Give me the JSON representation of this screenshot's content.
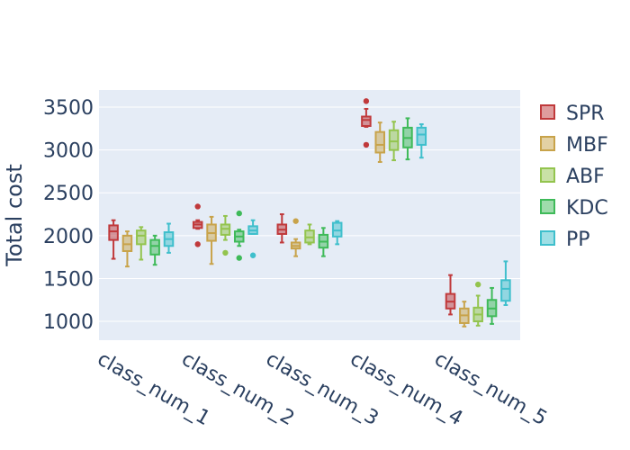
{
  "chart_data": {
    "type": "box",
    "title": "",
    "xlabel": "",
    "ylabel": "Total cost",
    "ylim": [
      780,
      3700
    ],
    "yticks": [
      1000,
      1500,
      2000,
      2500,
      3000,
      3500
    ],
    "ytick_labels": [
      "1000",
      "1500",
      "2000",
      "2500",
      "3000",
      "3500"
    ],
    "categories": [
      "class_num_1",
      "class_num_2",
      "class_num_3",
      "class_num_4",
      "class_num_5"
    ],
    "grid": true,
    "legend_position": "right",
    "series": [
      {
        "name": "SPR",
        "color": "#c0393b",
        "boxes": [
          {
            "min": 1730,
            "q1": 1950,
            "median": 2050,
            "q3": 2120,
            "max": 2180,
            "outliers": []
          },
          {
            "min": 2080,
            "q1": 2090,
            "median": 2130,
            "q3": 2160,
            "max": 2180,
            "outliers": [
              2340,
              1900
            ]
          },
          {
            "min": 1920,
            "q1": 2020,
            "median": 2070,
            "q3": 2130,
            "max": 2250,
            "outliers": []
          },
          {
            "min": 3270,
            "q1": 3280,
            "median": 3350,
            "q3": 3390,
            "max": 3480,
            "outliers": [
              3570,
              3060
            ]
          },
          {
            "min": 1080,
            "q1": 1150,
            "median": 1230,
            "q3": 1320,
            "max": 1540,
            "outliers": []
          }
        ]
      },
      {
        "name": "MBF",
        "color": "#c8a34a",
        "boxes": [
          {
            "min": 1640,
            "q1": 1820,
            "median": 1900,
            "q3": 2000,
            "max": 2050,
            "outliers": []
          },
          {
            "min": 1670,
            "q1": 1940,
            "median": 2030,
            "q3": 2130,
            "max": 2220,
            "outliers": []
          },
          {
            "min": 1760,
            "q1": 1850,
            "median": 1880,
            "q3": 1920,
            "max": 1960,
            "outliers": [
              2170
            ]
          },
          {
            "min": 2860,
            "q1": 2970,
            "median": 3060,
            "q3": 3210,
            "max": 3320,
            "outliers": []
          },
          {
            "min": 940,
            "q1": 980,
            "median": 1070,
            "q3": 1150,
            "max": 1230,
            "outliers": []
          }
        ]
      },
      {
        "name": "ABF",
        "color": "#93c44e",
        "boxes": [
          {
            "min": 1720,
            "q1": 1900,
            "median": 2000,
            "q3": 2060,
            "max": 2100,
            "outliers": []
          },
          {
            "min": 1950,
            "q1": 2010,
            "median": 2080,
            "q3": 2130,
            "max": 2230,
            "outliers": [
              1800
            ]
          },
          {
            "min": 1900,
            "q1": 1920,
            "median": 1980,
            "q3": 2060,
            "max": 2130,
            "outliers": []
          },
          {
            "min": 2880,
            "q1": 3000,
            "median": 3100,
            "q3": 3230,
            "max": 3330,
            "outliers": []
          },
          {
            "min": 950,
            "q1": 1000,
            "median": 1080,
            "q3": 1160,
            "max": 1300,
            "outliers": [
              1430
            ]
          }
        ]
      },
      {
        "name": "KDC",
        "color": "#3fba59",
        "boxes": [
          {
            "min": 1660,
            "q1": 1780,
            "median": 1880,
            "q3": 1950,
            "max": 2000,
            "outliers": []
          },
          {
            "min": 1880,
            "q1": 1930,
            "median": 1990,
            "q3": 2050,
            "max": 2070,
            "outliers": [
              2260,
              1740
            ]
          },
          {
            "min": 1760,
            "q1": 1860,
            "median": 1930,
            "q3": 2010,
            "max": 2090,
            "outliers": []
          },
          {
            "min": 2890,
            "q1": 3030,
            "median": 3140,
            "q3": 3260,
            "max": 3370,
            "outliers": []
          },
          {
            "min": 970,
            "q1": 1060,
            "median": 1150,
            "q3": 1250,
            "max": 1390,
            "outliers": []
          }
        ]
      },
      {
        "name": "PP",
        "color": "#3fbfcc",
        "boxes": [
          {
            "min": 1800,
            "q1": 1880,
            "median": 1960,
            "q3": 2040,
            "max": 2140,
            "outliers": []
          },
          {
            "min": 2020,
            "q1": 2020,
            "median": 2060,
            "q3": 2110,
            "max": 2180,
            "outliers": [
              1770
            ]
          },
          {
            "min": 1900,
            "q1": 1990,
            "median": 2060,
            "q3": 2150,
            "max": 2170,
            "outliers": []
          },
          {
            "min": 2910,
            "q1": 3060,
            "median": 3180,
            "q3": 3260,
            "max": 3300,
            "outliers": []
          },
          {
            "min": 1190,
            "q1": 1240,
            "median": 1380,
            "q3": 1480,
            "max": 1700,
            "outliers": []
          }
        ]
      }
    ]
  }
}
